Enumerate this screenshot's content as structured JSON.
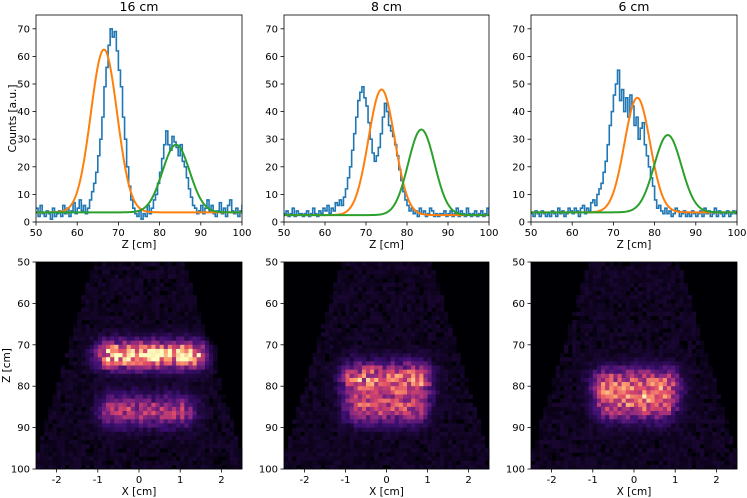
{
  "colors": {
    "histogram": "#1f77b4",
    "fit_first": "#ff7f0e",
    "fit_second": "#2ca02c",
    "heatmap_background": "#000004",
    "heatmap_colormap": [
      "#000004",
      "#3b0f70",
      "#8c2981",
      "#de4968",
      "#fe9f6d",
      "#fcfdbf"
    ]
  },
  "chart_data": [
    {
      "type": "line",
      "title": "16 cm",
      "xlabel": "Z [cm]",
      "ylabel": "Counts [a.u.]",
      "xlim": [
        50,
        100
      ],
      "ylim": [
        0,
        75
      ],
      "xticks": [
        50,
        60,
        70,
        80,
        90,
        100
      ],
      "yticks": [
        0,
        10,
        20,
        30,
        40,
        50,
        60,
        70
      ],
      "series": [
        {
          "name": "histogram",
          "style": "steps",
          "x_start": 50,
          "x_step": 0.5,
          "values": [
            5,
            2,
            6,
            3,
            2,
            4,
            3,
            1,
            5,
            2,
            3,
            4,
            2,
            6,
            3,
            5,
            2,
            4,
            7,
            3,
            5,
            8,
            4,
            6,
            3,
            5,
            8,
            11,
            14,
            18,
            24,
            30,
            38,
            49,
            56,
            64,
            70,
            67,
            69,
            62,
            55,
            49,
            38,
            30,
            20,
            13,
            8,
            5,
            3,
            2,
            4,
            1,
            3,
            2,
            6,
            3,
            5,
            8,
            10,
            14,
            18,
            23,
            28,
            33,
            28,
            26,
            31,
            29,
            27,
            24,
            28,
            22,
            20,
            16,
            12,
            9,
            6,
            5,
            3,
            4,
            6,
            3,
            5,
            8,
            4,
            6,
            3,
            2,
            4,
            7,
            3,
            5,
            2,
            6,
            8,
            4,
            3,
            5,
            2,
            4,
            6
          ]
        },
        {
          "name": "fit peak 1",
          "style": "gaussian",
          "amplitude": 59,
          "mean": 66.5,
          "sigma": 3.2,
          "baseline": 3.5
        },
        {
          "name": "fit peak 2",
          "style": "gaussian",
          "amplitude": 24.5,
          "mean": 84.0,
          "sigma": 3.3,
          "baseline": 3.5
        }
      ]
    },
    {
      "type": "line",
      "title": "8 cm",
      "xlabel": "Z [cm]",
      "xlim": [
        50,
        100
      ],
      "ylim": [
        0,
        75
      ],
      "xticks": [
        50,
        60,
        70,
        80,
        90,
        100
      ],
      "yticks": [
        0,
        10,
        20,
        30,
        40,
        50,
        60,
        70
      ],
      "series": [
        {
          "name": "histogram",
          "style": "steps",
          "x_start": 50,
          "x_step": 0.5,
          "values": [
            3,
            4,
            2,
            3,
            5,
            2,
            4,
            3,
            3,
            2,
            3,
            4,
            2,
            3,
            5,
            3,
            2,
            4,
            3,
            5,
            4,
            6,
            3,
            5,
            4,
            7,
            6,
            8,
            6,
            9,
            12,
            16,
            20,
            26,
            32,
            38,
            44,
            47,
            49,
            45,
            42,
            36,
            30,
            25,
            22,
            24,
            27,
            32,
            38,
            43,
            40,
            35,
            33,
            31,
            28,
            24,
            19,
            15,
            11,
            8,
            6,
            4,
            5,
            3,
            4,
            2,
            5,
            3,
            4,
            2,
            3,
            5,
            4,
            2,
            3,
            2,
            3,
            3,
            4,
            2,
            3,
            4,
            2,
            3,
            5,
            2,
            4,
            3,
            2,
            5,
            3,
            2,
            3,
            4,
            2,
            3,
            4,
            2,
            3,
            5,
            3
          ]
        },
        {
          "name": "fit peak 1",
          "style": "gaussian",
          "amplitude": 45.5,
          "mean": 73.8,
          "sigma": 3.2,
          "baseline": 2.5
        },
        {
          "name": "fit peak 2",
          "style": "gaussian",
          "amplitude": 31,
          "mean": 83.5,
          "sigma": 3.2,
          "baseline": 2.5
        }
      ]
    },
    {
      "type": "line",
      "title": "6 cm",
      "xlabel": "Z [cm]",
      "xlim": [
        50,
        100
      ],
      "ylim": [
        0,
        75
      ],
      "xticks": [
        50,
        60,
        70,
        80,
        90,
        100
      ],
      "yticks": [
        0,
        10,
        20,
        30,
        40,
        50,
        60,
        70
      ],
      "series": [
        {
          "name": "histogram",
          "style": "steps",
          "x_start": 50,
          "x_step": 0.5,
          "values": [
            3,
            2,
            4,
            3,
            2,
            4,
            3,
            2,
            3,
            2,
            4,
            3,
            2,
            5,
            3,
            4,
            2,
            3,
            5,
            4,
            3,
            5,
            4,
            2,
            5,
            6,
            3,
            5,
            4,
            7,
            8,
            6,
            10,
            12,
            14,
            18,
            22,
            28,
            35,
            40,
            46,
            50,
            55,
            44,
            48,
            40,
            45,
            38,
            46,
            42,
            35,
            38,
            30,
            34,
            36,
            28,
            24,
            20,
            16,
            13,
            8,
            5,
            6,
            4,
            3,
            5,
            3,
            4,
            2,
            3,
            5,
            4,
            2,
            3,
            4,
            2,
            3,
            2,
            4,
            3,
            2,
            3,
            4,
            2,
            5,
            3,
            4,
            2,
            3,
            5,
            2,
            4,
            3,
            2,
            3,
            4,
            2,
            3,
            4,
            3,
            4
          ]
        },
        {
          "name": "fit peak 1",
          "style": "gaussian",
          "amplitude": 41.5,
          "mean": 75.8,
          "sigma": 3.1,
          "baseline": 3.5
        },
        {
          "name": "fit peak 2",
          "style": "gaussian",
          "amplitude": 28,
          "mean": 83.2,
          "sigma": 3.3,
          "baseline": 3.5
        }
      ]
    },
    {
      "type": "heatmap",
      "title": "",
      "xlabel": "X [cm]",
      "ylabel": "Z [cm]",
      "xlim": [
        -2.5,
        2.5
      ],
      "ylim": [
        100,
        50
      ],
      "xticks": [
        -2,
        -1,
        0,
        1,
        2
      ],
      "yticks": [
        50,
        60,
        70,
        80,
        90,
        100
      ],
      "blobs": [
        {
          "x_range": [
            -1.0,
            1.6
          ],
          "z_center": 72.5,
          "z_sigma": 2.2,
          "intensity": 1.0
        },
        {
          "x_range": [
            -0.9,
            1.3
          ],
          "z_center": 86.0,
          "z_sigma": 2.6,
          "intensity": 0.5
        }
      ],
      "background_intensity": 0.06
    },
    {
      "type": "heatmap",
      "title": "",
      "xlabel": "X [cm]",
      "xlim": [
        -2.5,
        2.5
      ],
      "ylim": [
        100,
        50
      ],
      "xticks": [
        -2,
        -1,
        0,
        1,
        2
      ],
      "yticks": [
        50,
        60,
        70,
        80,
        90,
        100
      ],
      "blobs": [
        {
          "x_range": [
            -1.0,
            1.0
          ],
          "z_center": 78.5,
          "z_sigma": 2.8,
          "intensity": 0.75
        },
        {
          "x_range": [
            -0.9,
            0.9
          ],
          "z_center": 85.5,
          "z_sigma": 2.5,
          "intensity": 0.55
        }
      ],
      "background_intensity": 0.06
    },
    {
      "type": "heatmap",
      "title": "",
      "xlabel": "X [cm]",
      "xlim": [
        -2.5,
        2.5
      ],
      "ylim": [
        100,
        50
      ],
      "xticks": [
        -2,
        -1,
        0,
        1,
        2
      ],
      "yticks": [
        50,
        60,
        70,
        80,
        90,
        100
      ],
      "blobs": [
        {
          "x_range": [
            -0.9,
            1.0
          ],
          "z_center": 79.5,
          "z_sigma": 2.6,
          "intensity": 0.65
        },
        {
          "x_range": [
            -0.8,
            0.9
          ],
          "z_center": 84.5,
          "z_sigma": 2.6,
          "intensity": 0.6
        }
      ],
      "background_intensity": 0.06
    }
  ]
}
